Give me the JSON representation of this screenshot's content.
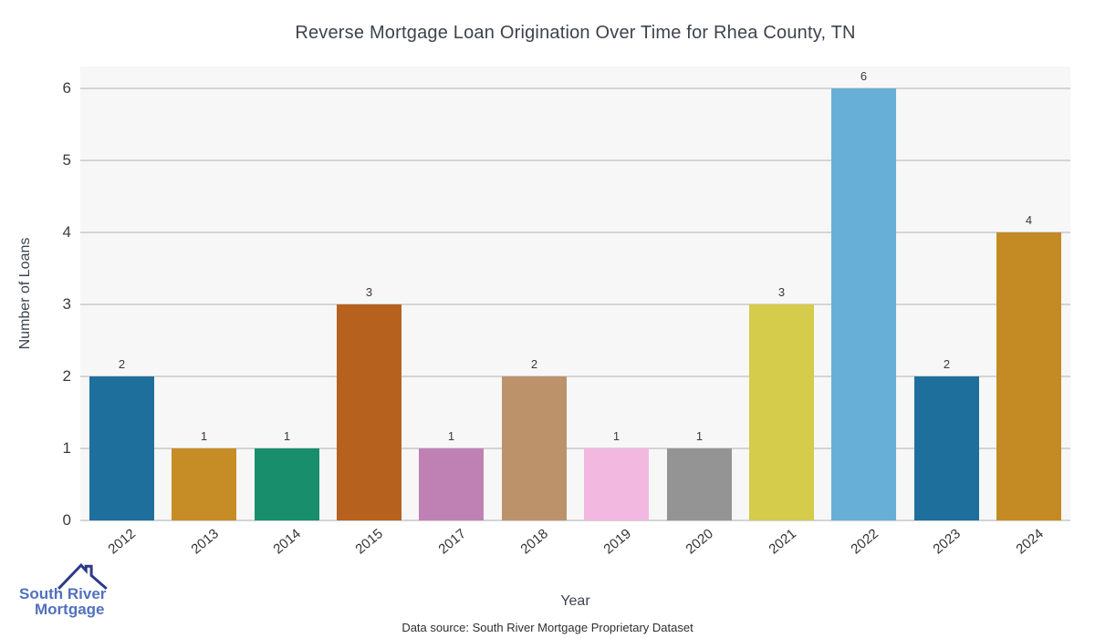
{
  "chart_data": {
    "type": "bar",
    "title": "Reverse Mortgage Loan Origination Over Time for Rhea County, TN",
    "xlabel": "Year",
    "ylabel": "Number of Loans",
    "categories": [
      "2012",
      "2013",
      "2014",
      "2015",
      "2017",
      "2018",
      "2019",
      "2020",
      "2021",
      "2022",
      "2023",
      "2024"
    ],
    "values": [
      2,
      1,
      1,
      3,
      1,
      2,
      1,
      1,
      3,
      6,
      2,
      4
    ],
    "bar_colors": [
      "#1f6f9d",
      "#c68c26",
      "#188e6c",
      "#b6621e",
      "#bf81b4",
      "#bc926b",
      "#f2b8df",
      "#949494",
      "#d4cc4a",
      "#68afd7",
      "#1f6f9d",
      "#c48a24"
    ],
    "yticks": [
      0,
      1,
      2,
      3,
      4,
      5,
      6
    ],
    "ylim": [
      0,
      6.3
    ],
    "grid": true,
    "legend": "none",
    "plot_bg": "#f7f7f7",
    "grid_color": "#d4d4d6"
  },
  "footer": {
    "source_text": "Data source: South River Mortgage Proprietary Dataset"
  },
  "logo": {
    "line1": "South River",
    "line2": "Mortgage",
    "text_color": "#5271bd",
    "roof_color": "#2c3a8a"
  }
}
